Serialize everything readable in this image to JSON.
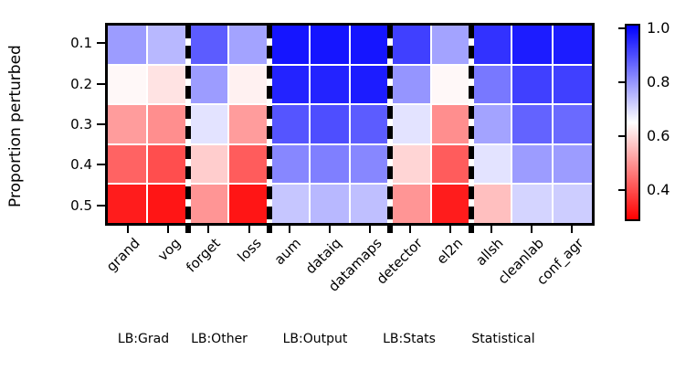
{
  "chart_data": {
    "type": "heatmap",
    "title": "",
    "ylabel": "Proportion perturbed",
    "xlabel": "",
    "rows": [
      "0.1",
      "0.2",
      "0.3",
      "0.4",
      "0.5"
    ],
    "columns": [
      "grand",
      "vog",
      "forget",
      "loss",
      "aum",
      "dataiq",
      "datamaps",
      "detector",
      "el2n",
      "allsh",
      "cleanlab",
      "conf_agr"
    ],
    "groups": [
      {
        "label": "LB:Grad",
        "span": 2,
        "columns": [
          "grand",
          "vog"
        ]
      },
      {
        "label": "LB:Other",
        "span": 2,
        "columns": [
          "forget",
          "loss"
        ]
      },
      {
        "label": "LB:Output",
        "span": 3,
        "columns": [
          "aum",
          "dataiq",
          "datamaps"
        ]
      },
      {
        "label": "LB:Stats",
        "span": 2,
        "columns": [
          "detector",
          "el2n"
        ]
      },
      {
        "label": "Statistical",
        "span": 3,
        "columns": [
          "allsh",
          "cleanlab",
          "conf_agr"
        ]
      }
    ],
    "values": [
      [
        0.79,
        0.75,
        0.88,
        0.78,
        0.98,
        0.98,
        0.98,
        0.92,
        0.78,
        0.94,
        0.97,
        0.97
      ],
      [
        0.64,
        0.61,
        0.79,
        0.63,
        0.96,
        0.96,
        0.97,
        0.8,
        0.64,
        0.84,
        0.92,
        0.92
      ],
      [
        0.51,
        0.49,
        0.69,
        0.51,
        0.89,
        0.9,
        0.88,
        0.69,
        0.49,
        0.78,
        0.87,
        0.86
      ],
      [
        0.43,
        0.4,
        0.58,
        0.42,
        0.82,
        0.83,
        0.82,
        0.59,
        0.42,
        0.69,
        0.79,
        0.79
      ],
      [
        0.33,
        0.32,
        0.5,
        0.32,
        0.73,
        0.75,
        0.74,
        0.5,
        0.33,
        0.56,
        0.71,
        0.72
      ]
    ],
    "colormap": {
      "name": "bwr_r",
      "vmin": 0.29,
      "vmax": 1.01,
      "midpoint": 0.65,
      "low_color": "#ff0000",
      "mid_color": "#ffffff",
      "high_color": "#0000ff"
    },
    "colorbar": {
      "ticks": [
        "1.0",
        "0.8",
        "0.6",
        "0.4"
      ],
      "position": "right"
    },
    "grid": "white cell separators, dashed black group separators",
    "legend_position": "right colorbar"
  }
}
